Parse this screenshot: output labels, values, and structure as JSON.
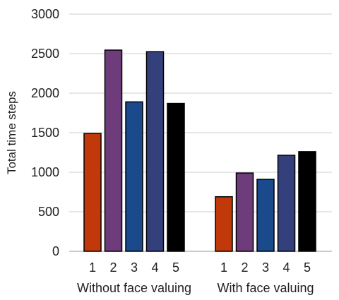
{
  "chart_data": {
    "type": "bar",
    "title": "",
    "xlabel": "",
    "ylabel": "Total time steps",
    "ylim": [
      0,
      3000
    ],
    "yticks": [
      0,
      500,
      1000,
      1500,
      2000,
      2500,
      3000
    ],
    "grid": true,
    "legend": "none",
    "groups": [
      {
        "label": "Without face valuing",
        "categories": [
          "1",
          "2",
          "3",
          "4",
          "5"
        ],
        "values": [
          1490,
          2545,
          1890,
          2525,
          1870
        ],
        "colors": [
          "#C1390B",
          "#6E3C7A",
          "#1A4A8C",
          "#34407C",
          "#000000"
        ]
      },
      {
        "label": "With face valuing",
        "categories": [
          "1",
          "2",
          "3",
          "4",
          "5"
        ],
        "values": [
          690,
          990,
          910,
          1215,
          1260
        ],
        "colors": [
          "#C1390B",
          "#6E3C7A",
          "#1A4A8C",
          "#34407C",
          "#000000"
        ]
      }
    ]
  }
}
